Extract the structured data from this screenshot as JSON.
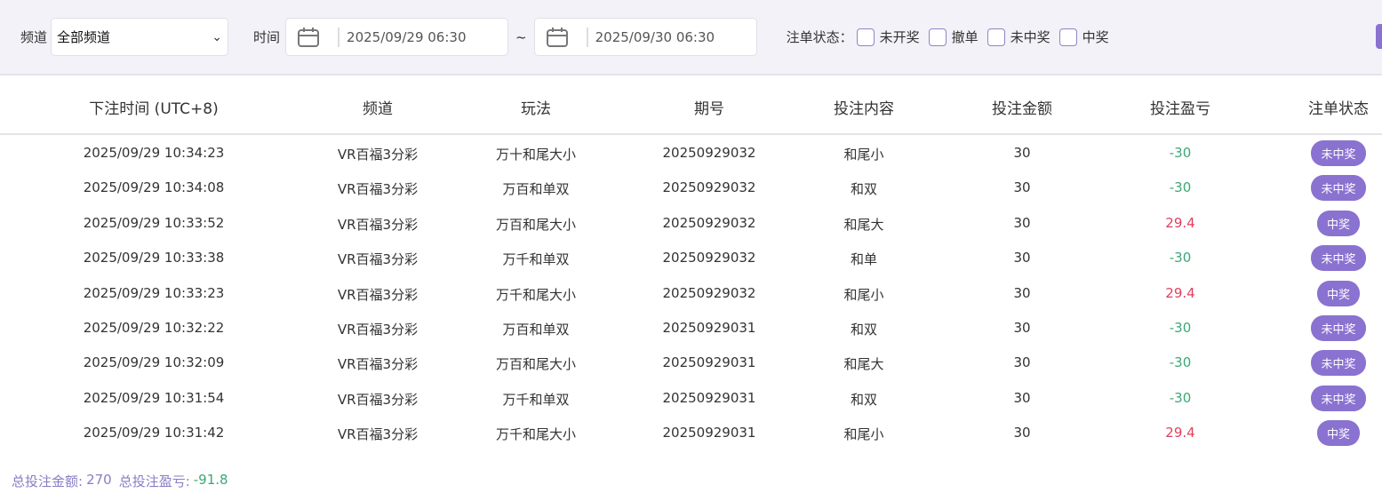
{
  "filters": {
    "channel_label": "频道",
    "channel_value": "全部频道",
    "time_label": "时间",
    "start_date": "2025/09/29 06:30",
    "range_sep": "~",
    "end_date": "2025/09/30 06:30",
    "status_label": "注单状态：",
    "status_options": [
      {
        "label": "未开奖",
        "checked": false
      },
      {
        "label": "撤单",
        "checked": false
      },
      {
        "label": "未中奖",
        "checked": false
      },
      {
        "label": "中奖",
        "checked": false
      }
    ]
  },
  "table": {
    "headers": [
      "下注时间 (UTC+8)",
      "频道",
      "玩法",
      "期号",
      "投注内容",
      "投注金额",
      "投注盈亏",
      "注单状态"
    ],
    "rows": [
      [
        "2025/09/29 10:34:23",
        "VR百福3分彩",
        "万十和尾大小",
        "20250929032",
        "和尾小",
        "30",
        "-30",
        "未中奖"
      ],
      [
        "2025/09/29 10:34:08",
        "VR百福3分彩",
        "万百和单双",
        "20250929032",
        "和双",
        "30",
        "-30",
        "未中奖"
      ],
      [
        "2025/09/29 10:33:52",
        "VR百福3分彩",
        "万百和尾大小",
        "20250929032",
        "和尾大",
        "30",
        "29.4",
        "中奖"
      ],
      [
        "2025/09/29 10:33:38",
        "VR百福3分彩",
        "万千和单双",
        "20250929032",
        "和单",
        "30",
        "-30",
        "未中奖"
      ],
      [
        "2025/09/29 10:33:23",
        "VR百福3分彩",
        "万千和尾大小",
        "20250929032",
        "和尾小",
        "30",
        "29.4",
        "中奖"
      ],
      [
        "2025/09/29 10:32:22",
        "VR百福3分彩",
        "万百和单双",
        "20250929031",
        "和双",
        "30",
        "-30",
        "未中奖"
      ],
      [
        "2025/09/29 10:32:09",
        "VR百福3分彩",
        "万百和尾大小",
        "20250929031",
        "和尾大",
        "30",
        "-30",
        "未中奖"
      ],
      [
        "2025/09/29 10:31:54",
        "VR百福3分彩",
        "万千和单双",
        "20250929031",
        "和双",
        "30",
        "-30",
        "未中奖"
      ],
      [
        "2025/09/29 10:31:42",
        "VR百福3分彩",
        "万千和尾大小",
        "20250929031",
        "和尾小",
        "30",
        "29.4",
        "中奖"
      ]
    ]
  },
  "summary": {
    "total_bet_label": "总投注金额:",
    "total_bet": "270",
    "total_pl_label": "总投注盈亏:",
    "total_pl": "-91.8"
  },
  "colors": {
    "accent": "#8a72d1",
    "profit": "#e0405c",
    "loss": "#3aa876"
  }
}
